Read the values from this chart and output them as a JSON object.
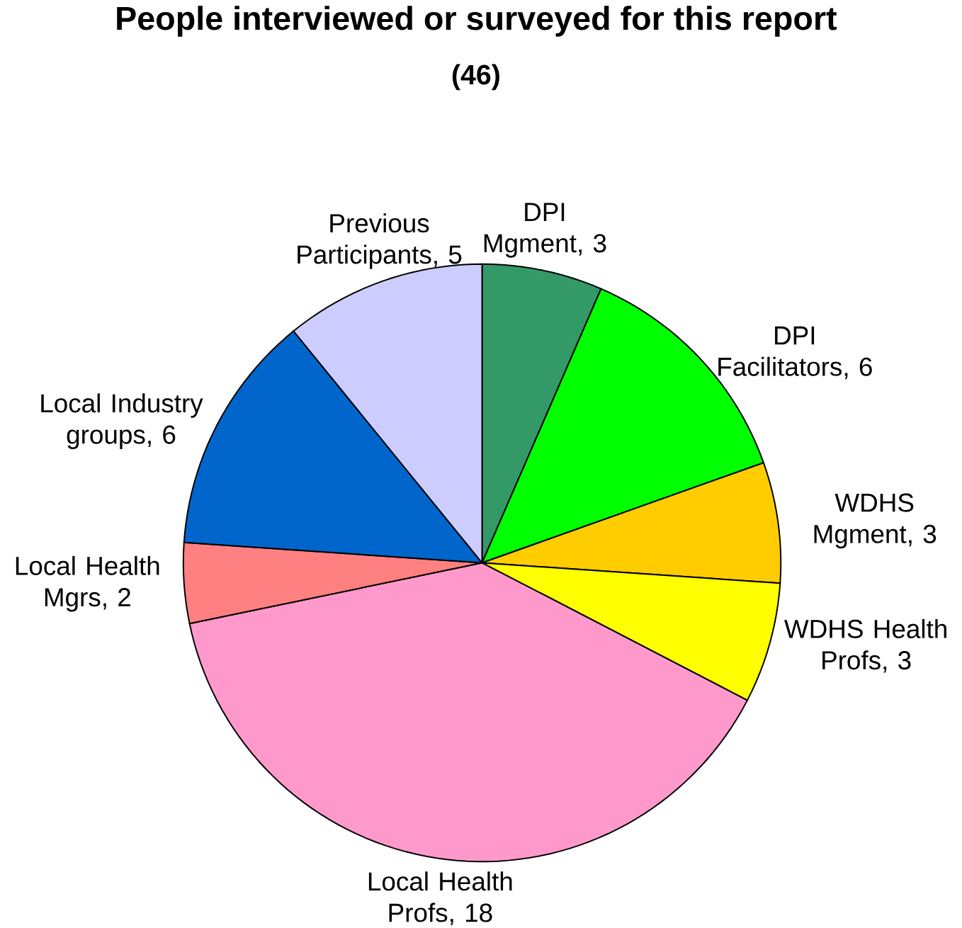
{
  "chart_data": {
    "type": "pie",
    "title": "People interviewed or surveyed for this report",
    "subtitle": "(46)",
    "categories": [
      "DPI Mgment",
      "DPI Facilitators",
      "WDHS Mgment",
      "WDHS Health Profs",
      "Local Health Profs",
      "Local Health Mgrs",
      "Local Industry groups",
      "Previous Participants"
    ],
    "values": [
      3,
      6,
      3,
      3,
      18,
      2,
      6,
      5
    ],
    "colors": [
      "#339966",
      "#00ff00",
      "#ffcc00",
      "#ffff00",
      "#ff99cc",
      "#ff8080",
      "#0066cc",
      "#ccccff"
    ],
    "value_labels": [
      ", 3",
      ", 6",
      ", 3",
      ", 3",
      ", 18",
      ", 2",
      ", 6",
      ", 5"
    ]
  }
}
